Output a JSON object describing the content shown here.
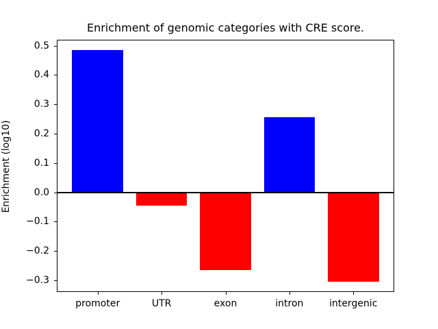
{
  "title": "Enrichment of genomic categories with CRE score.",
  "chart_data": {
    "type": "bar",
    "title": "Enrichment of genomic categories with CRE score.",
    "xlabel": "",
    "ylabel": "Enrichment (log10)",
    "categories": [
      "promoter",
      "UTR",
      "exon",
      "intron",
      "intergenic"
    ],
    "values": [
      0.485,
      -0.045,
      -0.265,
      0.255,
      -0.305
    ],
    "positive_color": "#0000ff",
    "negative_color": "#ff0000",
    "bar_width": 0.8,
    "xlim": [
      -0.64,
      4.64
    ],
    "ylim": [
      -0.34,
      0.52
    ],
    "y_tick_values": [
      0.5,
      0.4,
      0.3,
      0.2,
      0.1,
      0.0,
      -0.1,
      -0.2,
      -0.3
    ],
    "y_tick_labels": [
      "0.5",
      "0.4",
      "0.3",
      "0.2",
      "0.1",
      "0.0",
      "−0.1",
      "−0.2",
      "−0.3"
    ],
    "zero_line": true,
    "zero_line_color": "#000000",
    "grid": false,
    "legend": "none",
    "background_color": "#ffffff",
    "spine_color": "#000000"
  }
}
